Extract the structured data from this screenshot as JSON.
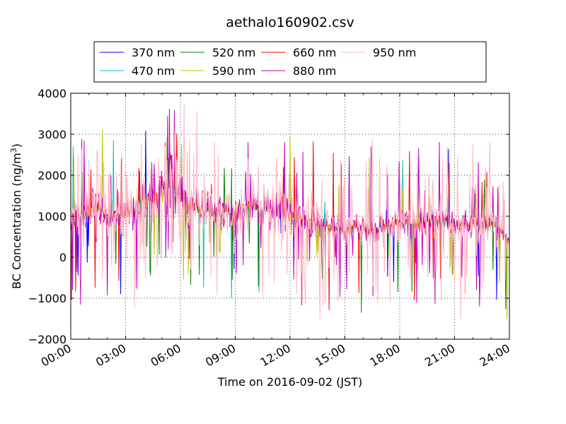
{
  "chart_data": {
    "type": "line",
    "title": "aethalo160902.csv",
    "xlabel": "Time on 2016-09-02 (JST)",
    "ylabel": "BC Concentration (ng/m",
    "ylabel_sup": "3",
    "ylabel_close": ")",
    "xlim": [
      0,
      24
    ],
    "ylim": [
      -2000,
      4000
    ],
    "x_ticks": [
      0,
      3,
      6,
      9,
      12,
      15,
      18,
      21,
      24
    ],
    "x_tick_labels": [
      "00:00",
      "03:00",
      "06:00",
      "09:00",
      "12:00",
      "15:00",
      "18:00",
      "21:00",
      "24:00"
    ],
    "y_ticks": [
      -2000,
      -1000,
      0,
      1000,
      2000,
      3000,
      4000
    ],
    "y_tick_labels": [
      "−2000",
      "−1000",
      "0",
      "1000",
      "2000",
      "3000",
      "4000"
    ],
    "grid": true,
    "legend_position": "top",
    "x_unit": "hours since 00:00 JST",
    "trend": {
      "x": [
        0,
        0.5,
        1,
        1.5,
        2,
        2.5,
        3,
        3.5,
        4,
        4.5,
        5,
        5.5,
        6,
        6.5,
        7,
        7.5,
        8,
        8.5,
        9,
        9.5,
        10,
        10.5,
        11,
        11.5,
        12,
        12.5,
        13,
        13.5,
        14,
        14.5,
        15,
        15.5,
        16,
        16.5,
        17,
        17.5,
        18,
        18.5,
        19,
        19.5,
        20,
        20.5,
        21,
        21.5,
        22,
        22.5,
        23,
        23.5,
        24
      ],
      "y": [
        900,
        1000,
        1100,
        1200,
        1050,
        950,
        1050,
        1150,
        1350,
        1450,
        1600,
        2000,
        1500,
        1300,
        1200,
        1100,
        1050,
        1100,
        1100,
        1150,
        1250,
        1150,
        1100,
        1200,
        1150,
        1000,
        900,
        850,
        750,
        700,
        700,
        750,
        700,
        650,
        750,
        800,
        800,
        850,
        850,
        800,
        850,
        850,
        800,
        800,
        800,
        800,
        750,
        700,
        400
      ]
    },
    "series": [
      {
        "name": "370 nm",
        "color": "#0000ff",
        "amp": 0.14,
        "spike": 0.02
      },
      {
        "name": "470 nm",
        "color": "#00bfbf",
        "amp": 0.16,
        "spike": 0.02
      },
      {
        "name": "520 nm",
        "color": "#008000",
        "amp": 0.18,
        "spike": 0.03
      },
      {
        "name": "590 nm",
        "color": "#bfbf00",
        "amp": 0.2,
        "spike": 0.03
      },
      {
        "name": "660 nm",
        "color": "#ff0000",
        "amp": 0.24,
        "spike": 0.04
      },
      {
        "name": "880 nm",
        "color": "#bf00bf",
        "amp": 0.34,
        "spike": 0.07
      },
      {
        "name": "950 nm",
        "color": "#ffb6c1",
        "amp": 0.45,
        "spike": 0.22
      }
    ]
  }
}
